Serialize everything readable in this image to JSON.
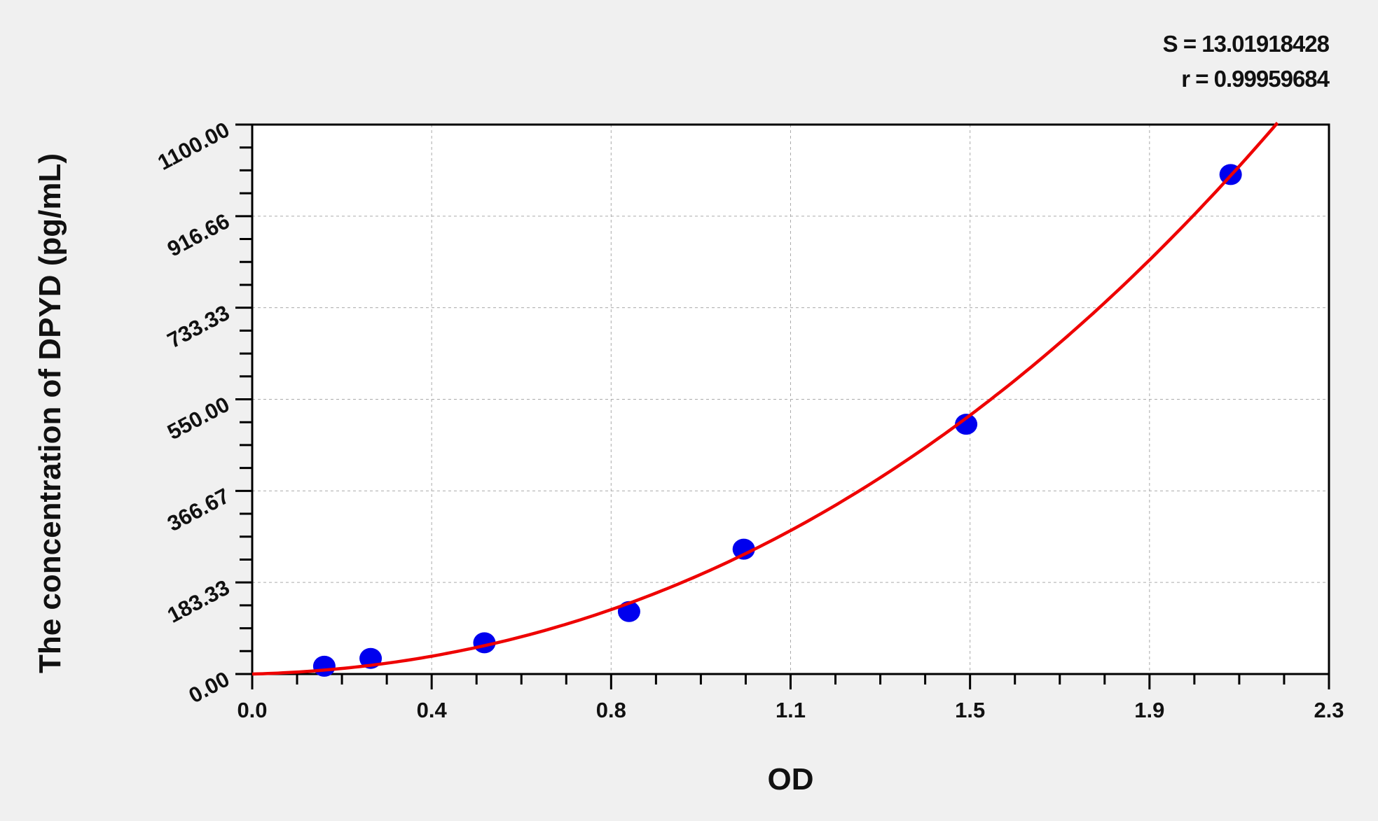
{
  "chart_data": {
    "type": "scatter",
    "title": "",
    "xlabel": "OD",
    "ylabel": "The concentration of DPYD (pg/mL)",
    "xlim": [
      0,
      2.3
    ],
    "ylim": [
      0,
      1100
    ],
    "x_tick_labels": [
      "0.0",
      "0.4",
      "0.8",
      "1.1",
      "1.5",
      "1.9",
      "2.3"
    ],
    "y_tick_labels": [
      "0.00",
      "183.33",
      "366.67",
      "550.00",
      "733.33",
      "916.66",
      "1100.00"
    ],
    "grid": true,
    "points": [
      {
        "x": 0.154,
        "y": 15.6
      },
      {
        "x": 0.253,
        "y": 31.25
      },
      {
        "x": 0.496,
        "y": 62.5
      },
      {
        "x": 0.805,
        "y": 125
      },
      {
        "x": 1.05,
        "y": 250
      },
      {
        "x": 1.525,
        "y": 500
      },
      {
        "x": 2.09,
        "y": 1000
      }
    ],
    "fit_curve": {
      "type": "cubic",
      "x_range": [
        0,
        2.19
      ]
    },
    "annotations": {
      "s": "S = 13.01918428",
      "r": "r = 0.99959684"
    },
    "colors": {
      "points": "#0000ee",
      "curve": "#ee0000",
      "background": "#f0f0f0",
      "plot_area": "#ffffff"
    }
  }
}
